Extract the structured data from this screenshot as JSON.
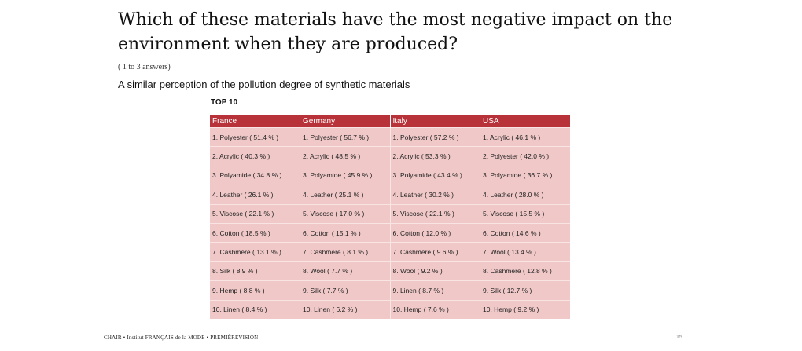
{
  "title": "Which of these materials have the most negative impact on the environment when they are produced?",
  "note": "( 1 to 3 answers)",
  "subtitle": "A similar perception of the pollution degree of synthetic materials",
  "top_label": "TOP 10",
  "table": {
    "headers": [
      "France",
      "Germany",
      "Italy",
      "USA"
    ],
    "rows": [
      [
        "1. Polyester ( 51.4 % )",
        "1. Polyester ( 56.7 % )",
        "1. Polyester ( 57.2 % )",
        "1. Acrylic ( 46.1 % )"
      ],
      [
        "2. Acrylic ( 40.3 % )",
        "2. Acrylic ( 48.5 % )",
        "2. Acrylic ( 53.3 % )",
        "2. Polyester ( 42.0 % )"
      ],
      [
        "3. Polyamide ( 34.8 % )",
        "3. Polyamide ( 45.9 % )",
        "3. Polyamide ( 43.4 % )",
        "3. Polyamide ( 36.7 % )"
      ],
      [
        "4. Leather ( 26.1 % )",
        "4. Leather ( 25.1 % )",
        "4. Leather ( 30.2 % )",
        "4. Leather ( 28.0 % )"
      ],
      [
        "5. Viscose ( 22.1 % )",
        "5. Viscose ( 17.0 % )",
        "5. Viscose ( 22.1 % )",
        "5. Viscose ( 15.5 % )"
      ],
      [
        "6. Cotton ( 18.5 % )",
        "6. Cotton ( 15.1 % )",
        "6. Cotton ( 12.0 % )",
        "6. Cotton ( 14.6 % )"
      ],
      [
        "7. Cashmere ( 13.1 % )",
        "7. Cashmere ( 8.1 % )",
        "7. Cashmere ( 9.6 % )",
        "7. Wool ( 13.4 % )"
      ],
      [
        "8. Silk ( 8.9 % )",
        "8. Wool ( 7.7 % )",
        "8. Wool ( 9.2 % )",
        "8. Cashmere ( 12.8 % )"
      ],
      [
        "9. Hemp ( 8.8 % )",
        "9. Silk ( 7.7 % )",
        "9. Linen ( 8.7 % )",
        "9. Silk ( 12.7 % )"
      ],
      [
        "10. Linen ( 8.4 % )",
        "10. Linen ( 6.2 % )",
        "10. Hemp ( 7.6 % )",
        "10. Hemp ( 9.2 % )"
      ]
    ]
  },
  "footer": "CHAIR • Institut FRANÇAIS de la MODE • PREMIÈREVISION",
  "page_number": "15",
  "colors": {
    "header_bg": "#b8323a",
    "cell_bg": "#f0c8c8"
  }
}
